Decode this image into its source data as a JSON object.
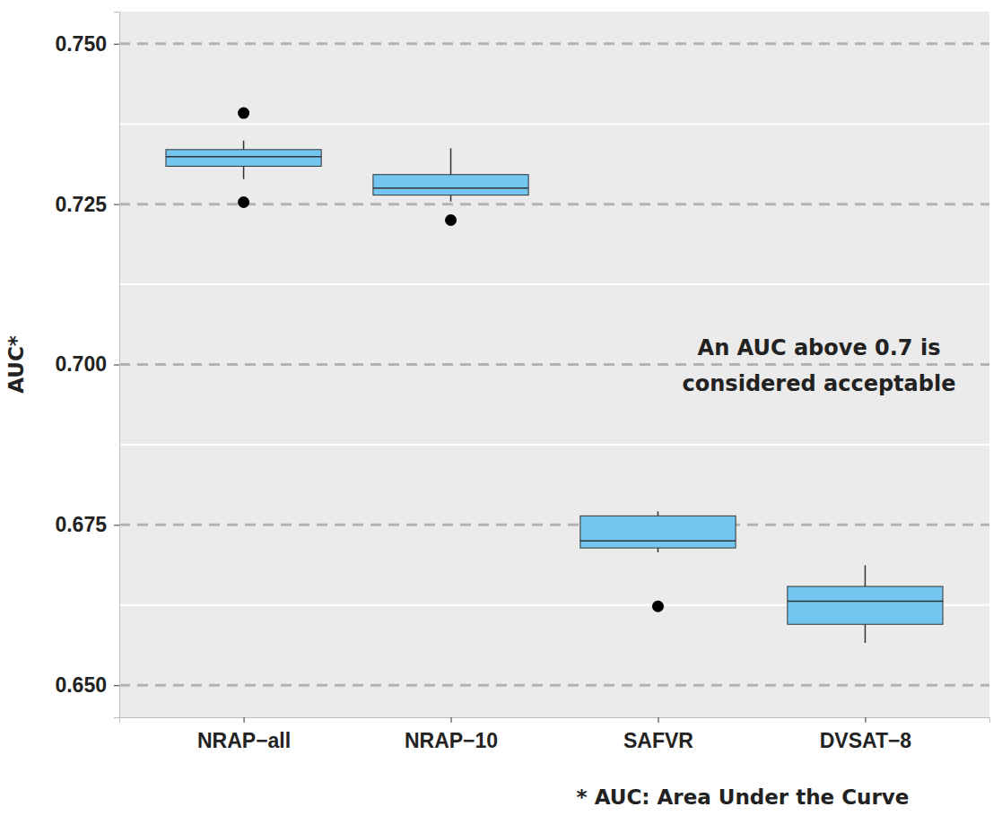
{
  "chart_data": {
    "type": "box",
    "y_label": "AUC*",
    "categories": [
      "NRAP−all",
      "NRAP−10",
      "SAFVR",
      "DVSAT−8"
    ],
    "boxes": [
      {
        "whisker_low": 0.7289,
        "q1": 0.7309,
        "median": 0.7324,
        "q3": 0.7335,
        "whisker_high": 0.7349,
        "outliers": [
          0.7392,
          0.7253
        ]
      },
      {
        "whisker_low": 0.7254,
        "q1": 0.7264,
        "median": 0.7275,
        "q3": 0.7296,
        "whisker_high": 0.7337,
        "outliers": [
          0.7225
        ]
      },
      {
        "whisker_low": 0.6707,
        "q1": 0.6714,
        "median": 0.6725,
        "q3": 0.6764,
        "whisker_high": 0.6771,
        "outliers": [
          0.6623
        ]
      },
      {
        "whisker_low": 0.6566,
        "q1": 0.6595,
        "median": 0.6631,
        "q3": 0.6654,
        "whisker_high": 0.6687,
        "outliers": []
      }
    ],
    "color": "#73c6ef",
    "ylim": [
      0.645,
      0.755
    ],
    "yticks": [
      {
        "value": 0.65,
        "label": "0.650"
      },
      {
        "value": 0.675,
        "label": "0.675"
      },
      {
        "value": 0.7,
        "label": "0.700"
      },
      {
        "value": 0.725,
        "label": "0.725"
      },
      {
        "value": 0.75,
        "label": "0.750"
      }
    ],
    "grid": true,
    "annotation": [
      "An AUC above 0.7 is",
      "considered acceptable"
    ],
    "note": "* AUC: Area Under the Curve"
  }
}
